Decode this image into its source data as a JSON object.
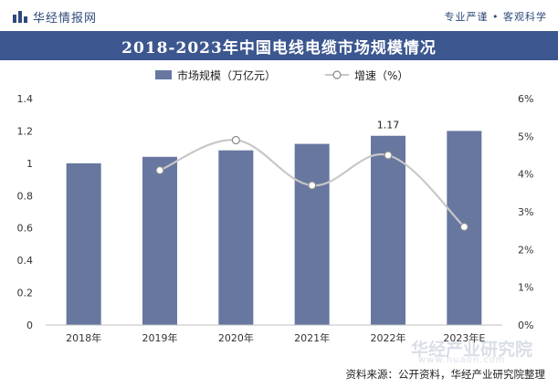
{
  "header": {
    "brand_name": "华经情报网",
    "slogan": "专业严谨 • 客观科学"
  },
  "title": "2018-2023年中国电线电缆市场规模情况",
  "footer": {
    "source": "资料来源：公开资料，华经产业研究院整理"
  },
  "watermark": {
    "logo": "华经产业研究院",
    "url": "www.huaon.com"
  },
  "colors": {
    "title_bar": "#3c5790",
    "bar": "#6777a0",
    "line": "#c8c8c8",
    "marker_fill": "#ffffff",
    "marker_stroke": "#8a8a8a",
    "brand": "#2e4a7b"
  },
  "chart_data": {
    "type": "bar",
    "categories": [
      "2018年",
      "2019年",
      "2020年",
      "2021年",
      "2022年",
      "2023年E"
    ],
    "series": [
      {
        "name": "市场规模（万亿元）",
        "type": "bar",
        "axis": "left",
        "values": [
          1.0,
          1.04,
          1.08,
          1.12,
          1.17,
          1.2
        ]
      },
      {
        "name": "增速（%）",
        "type": "line",
        "axis": "right",
        "marker": "circle",
        "smooth": true,
        "values": [
          null,
          4.1,
          4.9,
          3.7,
          4.5,
          2.6
        ]
      }
    ],
    "data_labels": [
      {
        "series": 0,
        "index": 4,
        "text": "1.17"
      }
    ],
    "y_left": {
      "range": [
        0,
        1.4
      ],
      "ticks": [
        "0",
        "0.2",
        "0.4",
        "0.6",
        "0.8",
        "1",
        "1.2",
        "1.4"
      ]
    },
    "y_right": {
      "range": [
        0,
        6
      ],
      "ticks": [
        "0%",
        "1%",
        "2%",
        "3%",
        "4%",
        "5%",
        "6%"
      ]
    },
    "legend_position": "top-center",
    "grid": false
  }
}
